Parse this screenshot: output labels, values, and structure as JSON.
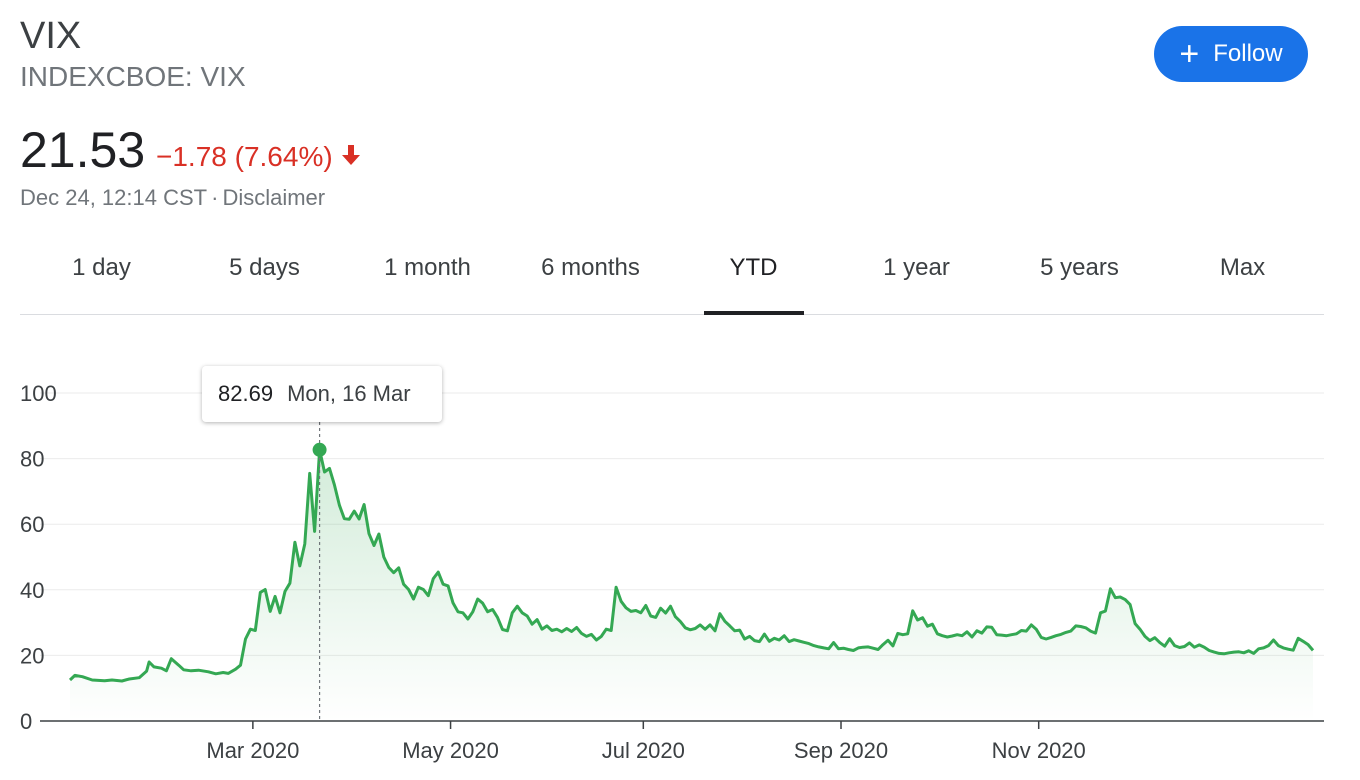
{
  "quote": {
    "symbol": "VIX",
    "exchange": "INDEXCBOE: VIX",
    "price": "21.53",
    "change": "−1.78 (7.64%)",
    "timestamp": "Dec 24, 12:14 CST",
    "separator": "·",
    "disclaimer": "Disclaimer"
  },
  "follow_button": {
    "label": "Follow"
  },
  "tabs": [
    {
      "label": "1 day",
      "active": false
    },
    {
      "label": "5 days",
      "active": false
    },
    {
      "label": "1 month",
      "active": false
    },
    {
      "label": "6 months",
      "active": false
    },
    {
      "label": "YTD",
      "active": true
    },
    {
      "label": "1 year",
      "active": false
    },
    {
      "label": "5 years",
      "active": false
    },
    {
      "label": "Max",
      "active": false
    }
  ],
  "tooltip": {
    "value": "82.69",
    "date": "Mon, 16 Mar"
  },
  "colors": {
    "line": "#34a853",
    "accent": "#1a73e8",
    "negative": "#d93025"
  },
  "chart_data": {
    "type": "line",
    "series": [
      {
        "values": [
          [
            0,
            12.5
          ],
          [
            2,
            13.9
          ],
          [
            5,
            13.5
          ],
          [
            9,
            12.5
          ],
          [
            14,
            12.3
          ],
          [
            17,
            12.5
          ],
          [
            21,
            12.2
          ],
          [
            24,
            12.8
          ],
          [
            28,
            13.2
          ],
          [
            31,
            15.2
          ],
          [
            32,
            18.0
          ],
          [
            34,
            16.5
          ],
          [
            37,
            16.1
          ],
          [
            39,
            15.3
          ],
          [
            41,
            19.0
          ],
          [
            44,
            17.0
          ],
          [
            46,
            15.6
          ],
          [
            49,
            15.3
          ],
          [
            52,
            15.5
          ],
          [
            56,
            15.0
          ],
          [
            59,
            14.4
          ],
          [
            62,
            14.8
          ],
          [
            64,
            14.5
          ],
          [
            67,
            15.8
          ],
          [
            69,
            17.0
          ],
          [
            71,
            25.0
          ],
          [
            73,
            28.0
          ],
          [
            75,
            27.6
          ],
          [
            77,
            39.2
          ],
          [
            79,
            40.1
          ],
          [
            81,
            33.4
          ],
          [
            83,
            38.0
          ],
          [
            85,
            33.0
          ],
          [
            87,
            39.5
          ],
          [
            89,
            42.0
          ],
          [
            91,
            54.5
          ],
          [
            93,
            47.3
          ],
          [
            95,
            54.0
          ],
          [
            97,
            75.5
          ],
          [
            99,
            57.8
          ],
          [
            101,
            82.69
          ],
          [
            103,
            75.9
          ],
          [
            105,
            77.0
          ],
          [
            107,
            72.0
          ],
          [
            109,
            65.8
          ],
          [
            111,
            61.7
          ],
          [
            113,
            61.5
          ],
          [
            115,
            64.0
          ],
          [
            117,
            61.6
          ],
          [
            119,
            66.0
          ],
          [
            121,
            57.1
          ],
          [
            123,
            53.5
          ],
          [
            125,
            57.0
          ],
          [
            127,
            50.0
          ],
          [
            129,
            46.8
          ],
          [
            131,
            45.2
          ],
          [
            133,
            46.7
          ],
          [
            135,
            41.7
          ],
          [
            137,
            40.1
          ],
          [
            139,
            37.2
          ],
          [
            141,
            40.8
          ],
          [
            143,
            40.1
          ],
          [
            145,
            38.2
          ],
          [
            147,
            43.4
          ],
          [
            149,
            45.4
          ],
          [
            151,
            41.7
          ],
          [
            153,
            41.2
          ],
          [
            155,
            36.0
          ],
          [
            157,
            33.3
          ],
          [
            159,
            33.0
          ],
          [
            161,
            31.1
          ],
          [
            163,
            33.3
          ],
          [
            165,
            37.2
          ],
          [
            167,
            35.9
          ],
          [
            169,
            33.3
          ],
          [
            171,
            34.0
          ],
          [
            173,
            31.6
          ],
          [
            175,
            27.9
          ],
          [
            177,
            27.5
          ],
          [
            179,
            33.0
          ],
          [
            181,
            35.0
          ],
          [
            183,
            33.0
          ],
          [
            185,
            32.0
          ],
          [
            187,
            29.5
          ],
          [
            189,
            30.9
          ],
          [
            191,
            28.0
          ],
          [
            193,
            29.0
          ],
          [
            195,
            27.6
          ],
          [
            197,
            28.0
          ],
          [
            199,
            27.2
          ],
          [
            201,
            28.2
          ],
          [
            203,
            27.3
          ],
          [
            205,
            28.5
          ],
          [
            207,
            26.7
          ],
          [
            209,
            25.8
          ],
          [
            211,
            26.4
          ],
          [
            213,
            24.7
          ],
          [
            215,
            25.8
          ],
          [
            217,
            28.0
          ],
          [
            219,
            27.6
          ],
          [
            221,
            40.8
          ],
          [
            223,
            36.5
          ],
          [
            225,
            34.5
          ],
          [
            227,
            33.4
          ],
          [
            229,
            33.7
          ],
          [
            231,
            33.0
          ],
          [
            233,
            35.2
          ],
          [
            235,
            32.0
          ],
          [
            237,
            31.6
          ],
          [
            239,
            34.4
          ],
          [
            241,
            32.9
          ],
          [
            243,
            35.0
          ],
          [
            245,
            31.8
          ],
          [
            247,
            30.3
          ],
          [
            249,
            28.4
          ],
          [
            251,
            27.8
          ],
          [
            253,
            28.2
          ],
          [
            255,
            29.3
          ],
          [
            257,
            28.0
          ],
          [
            259,
            29.3
          ],
          [
            261,
            27.5
          ],
          [
            263,
            32.7
          ],
          [
            265,
            30.4
          ],
          [
            267,
            29.0
          ],
          [
            269,
            27.5
          ],
          [
            271,
            27.7
          ],
          [
            273,
            25.0
          ],
          [
            275,
            25.8
          ],
          [
            277,
            24.5
          ],
          [
            279,
            24.2
          ],
          [
            281,
            26.5
          ],
          [
            283,
            24.3
          ],
          [
            285,
            25.2
          ],
          [
            287,
            24.7
          ],
          [
            289,
            26.0
          ],
          [
            291,
            24.2
          ],
          [
            293,
            24.8
          ],
          [
            295,
            24.4
          ],
          [
            297,
            24.0
          ],
          [
            299,
            23.6
          ],
          [
            301,
            23.0
          ],
          [
            303,
            22.6
          ],
          [
            305,
            22.3
          ],
          [
            307,
            22.0
          ],
          [
            309,
            23.9
          ],
          [
            311,
            22.0
          ],
          [
            313,
            22.2
          ],
          [
            315,
            21.8
          ],
          [
            317,
            21.5
          ],
          [
            319,
            22.3
          ],
          [
            321,
            22.5
          ],
          [
            323,
            22.6
          ],
          [
            325,
            22.2
          ],
          [
            327,
            21.8
          ],
          [
            329,
            23.3
          ],
          [
            331,
            24.6
          ],
          [
            333,
            22.9
          ],
          [
            335,
            26.7
          ],
          [
            337,
            26.3
          ],
          [
            339,
            26.6
          ],
          [
            341,
            33.6
          ],
          [
            343,
            30.8
          ],
          [
            345,
            31.5
          ],
          [
            347,
            28.9
          ],
          [
            349,
            29.5
          ],
          [
            351,
            26.6
          ],
          [
            353,
            26.0
          ],
          [
            355,
            25.6
          ],
          [
            357,
            25.9
          ],
          [
            359,
            26.3
          ],
          [
            361,
            26.0
          ],
          [
            363,
            27.2
          ],
          [
            365,
            25.6
          ],
          [
            367,
            27.5
          ],
          [
            369,
            26.8
          ],
          [
            371,
            28.7
          ],
          [
            373,
            28.6
          ],
          [
            375,
            26.3
          ],
          [
            377,
            26.2
          ],
          [
            379,
            26.0
          ],
          [
            381,
            26.3
          ],
          [
            383,
            26.6
          ],
          [
            385,
            27.6
          ],
          [
            387,
            27.4
          ],
          [
            389,
            29.3
          ],
          [
            391,
            28.0
          ],
          [
            393,
            25.5
          ],
          [
            395,
            25.0
          ],
          [
            397,
            25.5
          ],
          [
            399,
            26.0
          ],
          [
            401,
            26.4
          ],
          [
            403,
            27.0
          ],
          [
            405,
            27.4
          ],
          [
            407,
            29.0
          ],
          [
            409,
            28.8
          ],
          [
            411,
            28.4
          ],
          [
            413,
            27.4
          ],
          [
            415,
            26.8
          ],
          [
            417,
            33.0
          ],
          [
            419,
            33.5
          ],
          [
            421,
            40.3
          ],
          [
            423,
            37.6
          ],
          [
            425,
            37.8
          ],
          [
            427,
            37.0
          ],
          [
            429,
            35.5
          ],
          [
            431,
            29.7
          ],
          [
            433,
            28.0
          ],
          [
            435,
            25.8
          ],
          [
            437,
            24.5
          ],
          [
            439,
            25.4
          ],
          [
            441,
            23.9
          ],
          [
            443,
            22.8
          ],
          [
            445,
            25.1
          ],
          [
            447,
            23.0
          ],
          [
            449,
            22.4
          ],
          [
            451,
            22.7
          ],
          [
            453,
            23.8
          ],
          [
            455,
            22.5
          ],
          [
            457,
            23.2
          ],
          [
            459,
            22.5
          ],
          [
            461,
            21.5
          ],
          [
            463,
            21.0
          ],
          [
            465,
            20.6
          ],
          [
            467,
            20.5
          ],
          [
            469,
            20.8
          ],
          [
            471,
            21.0
          ],
          [
            473,
            21.1
          ],
          [
            475,
            20.8
          ],
          [
            477,
            21.4
          ],
          [
            479,
            20.6
          ],
          [
            481,
            22.0
          ],
          [
            483,
            22.3
          ],
          [
            485,
            23.0
          ],
          [
            487,
            24.7
          ],
          [
            489,
            23.0
          ],
          [
            491,
            22.3
          ],
          [
            493,
            21.9
          ],
          [
            495,
            21.6
          ],
          [
            497,
            25.2
          ],
          [
            499,
            24.3
          ],
          [
            501,
            23.3
          ],
          [
            503,
            21.53
          ]
        ]
      }
    ],
    "x_ticks": [
      {
        "label": "Mar 2020",
        "x": 74
      },
      {
        "label": "May 2020",
        "x": 154
      },
      {
        "label": "Jul 2020",
        "x": 232
      },
      {
        "label": "Sep 2020",
        "x": 312
      },
      {
        "label": "Nov 2020",
        "x": 392
      }
    ],
    "xlim": [
      -2,
      503
    ],
    "ylim": [
      0,
      110
    ],
    "y_ticks": [
      0,
      20,
      40,
      60,
      80,
      100
    ],
    "highlight": {
      "x": 101,
      "y": 82.69
    },
    "grid": true,
    "legend": "none"
  }
}
